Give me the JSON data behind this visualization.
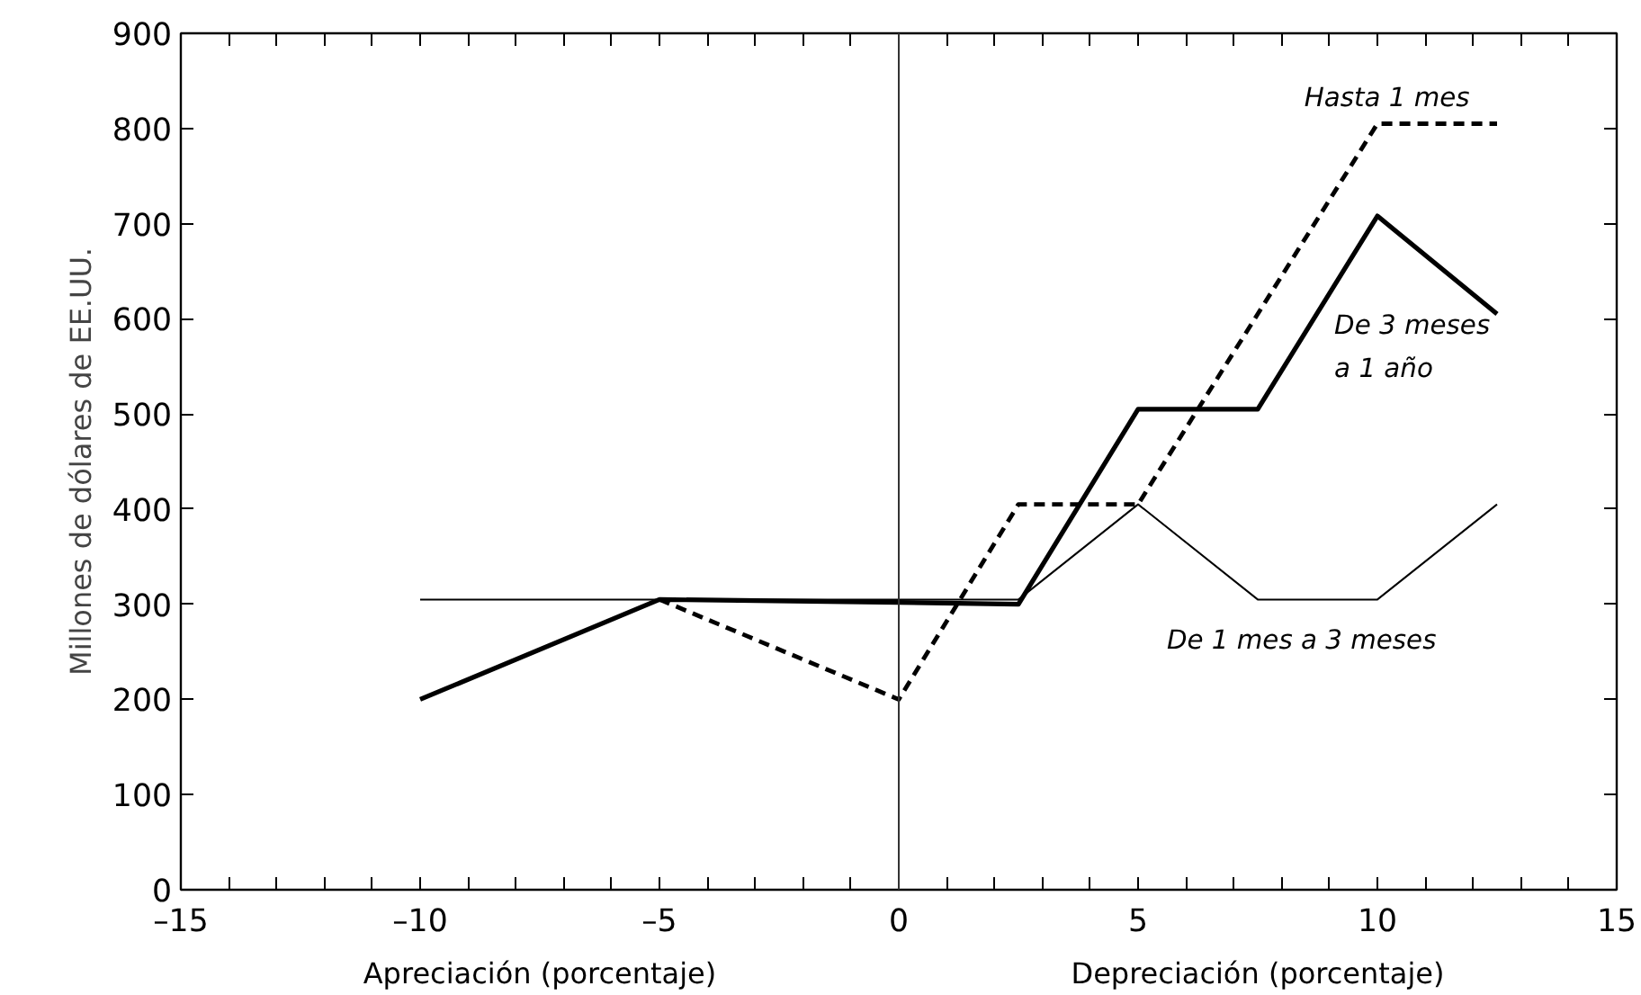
{
  "chart_data": {
    "type": "line",
    "ylabel": "Millones de dólares de EE.UU.",
    "annotations": [
      "Apreciación (porcentaje)",
      "Depreciación (porcentaje)"
    ],
    "xlim": [
      -15,
      15
    ],
    "ylim": [
      0,
      900
    ],
    "xticks": [
      {
        "value": -15,
        "label": "–15"
      },
      {
        "value": -14,
        "label": null
      },
      {
        "value": -13,
        "label": null
      },
      {
        "value": -12,
        "label": null
      },
      {
        "value": -11,
        "label": null
      },
      {
        "value": -10,
        "label": "–10"
      },
      {
        "value": -9,
        "label": null
      },
      {
        "value": -8,
        "label": null
      },
      {
        "value": -7,
        "label": null
      },
      {
        "value": -6,
        "label": null
      },
      {
        "value": -5,
        "label": "–5"
      },
      {
        "value": -4,
        "label": null
      },
      {
        "value": -3,
        "label": null
      },
      {
        "value": -2,
        "label": null
      },
      {
        "value": -1,
        "label": null
      },
      0,
      {
        "value": 1,
        "label": null
      },
      {
        "value": 2,
        "label": null
      },
      {
        "value": 3,
        "label": null
      },
      {
        "value": 4,
        "label": null
      },
      5,
      {
        "value": 6,
        "label": null
      },
      {
        "value": 7,
        "label": null
      },
      {
        "value": 8,
        "label": null
      },
      {
        "value": 9,
        "label": null
      },
      10,
      {
        "value": 11,
        "label": null
      },
      {
        "value": 12,
        "label": null
      },
      {
        "value": 13,
        "label": null
      },
      {
        "value": 14,
        "label": null
      },
      15
    ],
    "yticks": [
      0,
      100,
      200,
      300,
      400,
      500,
      600,
      700,
      800,
      900
    ],
    "grid": false,
    "ref_lines": [
      {
        "axis": "x",
        "value": 0,
        "color": "#333333"
      }
    ],
    "series": [
      {
        "name": "Hasta 1 mes",
        "color": "#000000",
        "line_style": "dashed",
        "x": [
          -5,
          0,
          2.5,
          5,
          10,
          12.5
        ],
        "values": [
          305,
          200,
          405,
          405,
          805,
          805
        ]
      },
      {
        "name": "De 3 meses a 1 año",
        "color": "#000000",
        "line_style": "solid",
        "x": [
          -10,
          -5,
          0,
          2.5,
          5,
          7.5,
          10,
          12.5
        ],
        "values": [
          200,
          305,
          302,
          300,
          505,
          505,
          708,
          605
        ]
      },
      {
        "name": "De 1 mes a 3 meses",
        "color": "#000000",
        "line_style": "solid",
        "x": [
          -10,
          -5,
          0,
          2.5,
          5,
          7.5,
          10,
          12.5
        ],
        "values": [
          305,
          305,
          305,
          305,
          405,
          305,
          305,
          405
        ]
      }
    ]
  }
}
